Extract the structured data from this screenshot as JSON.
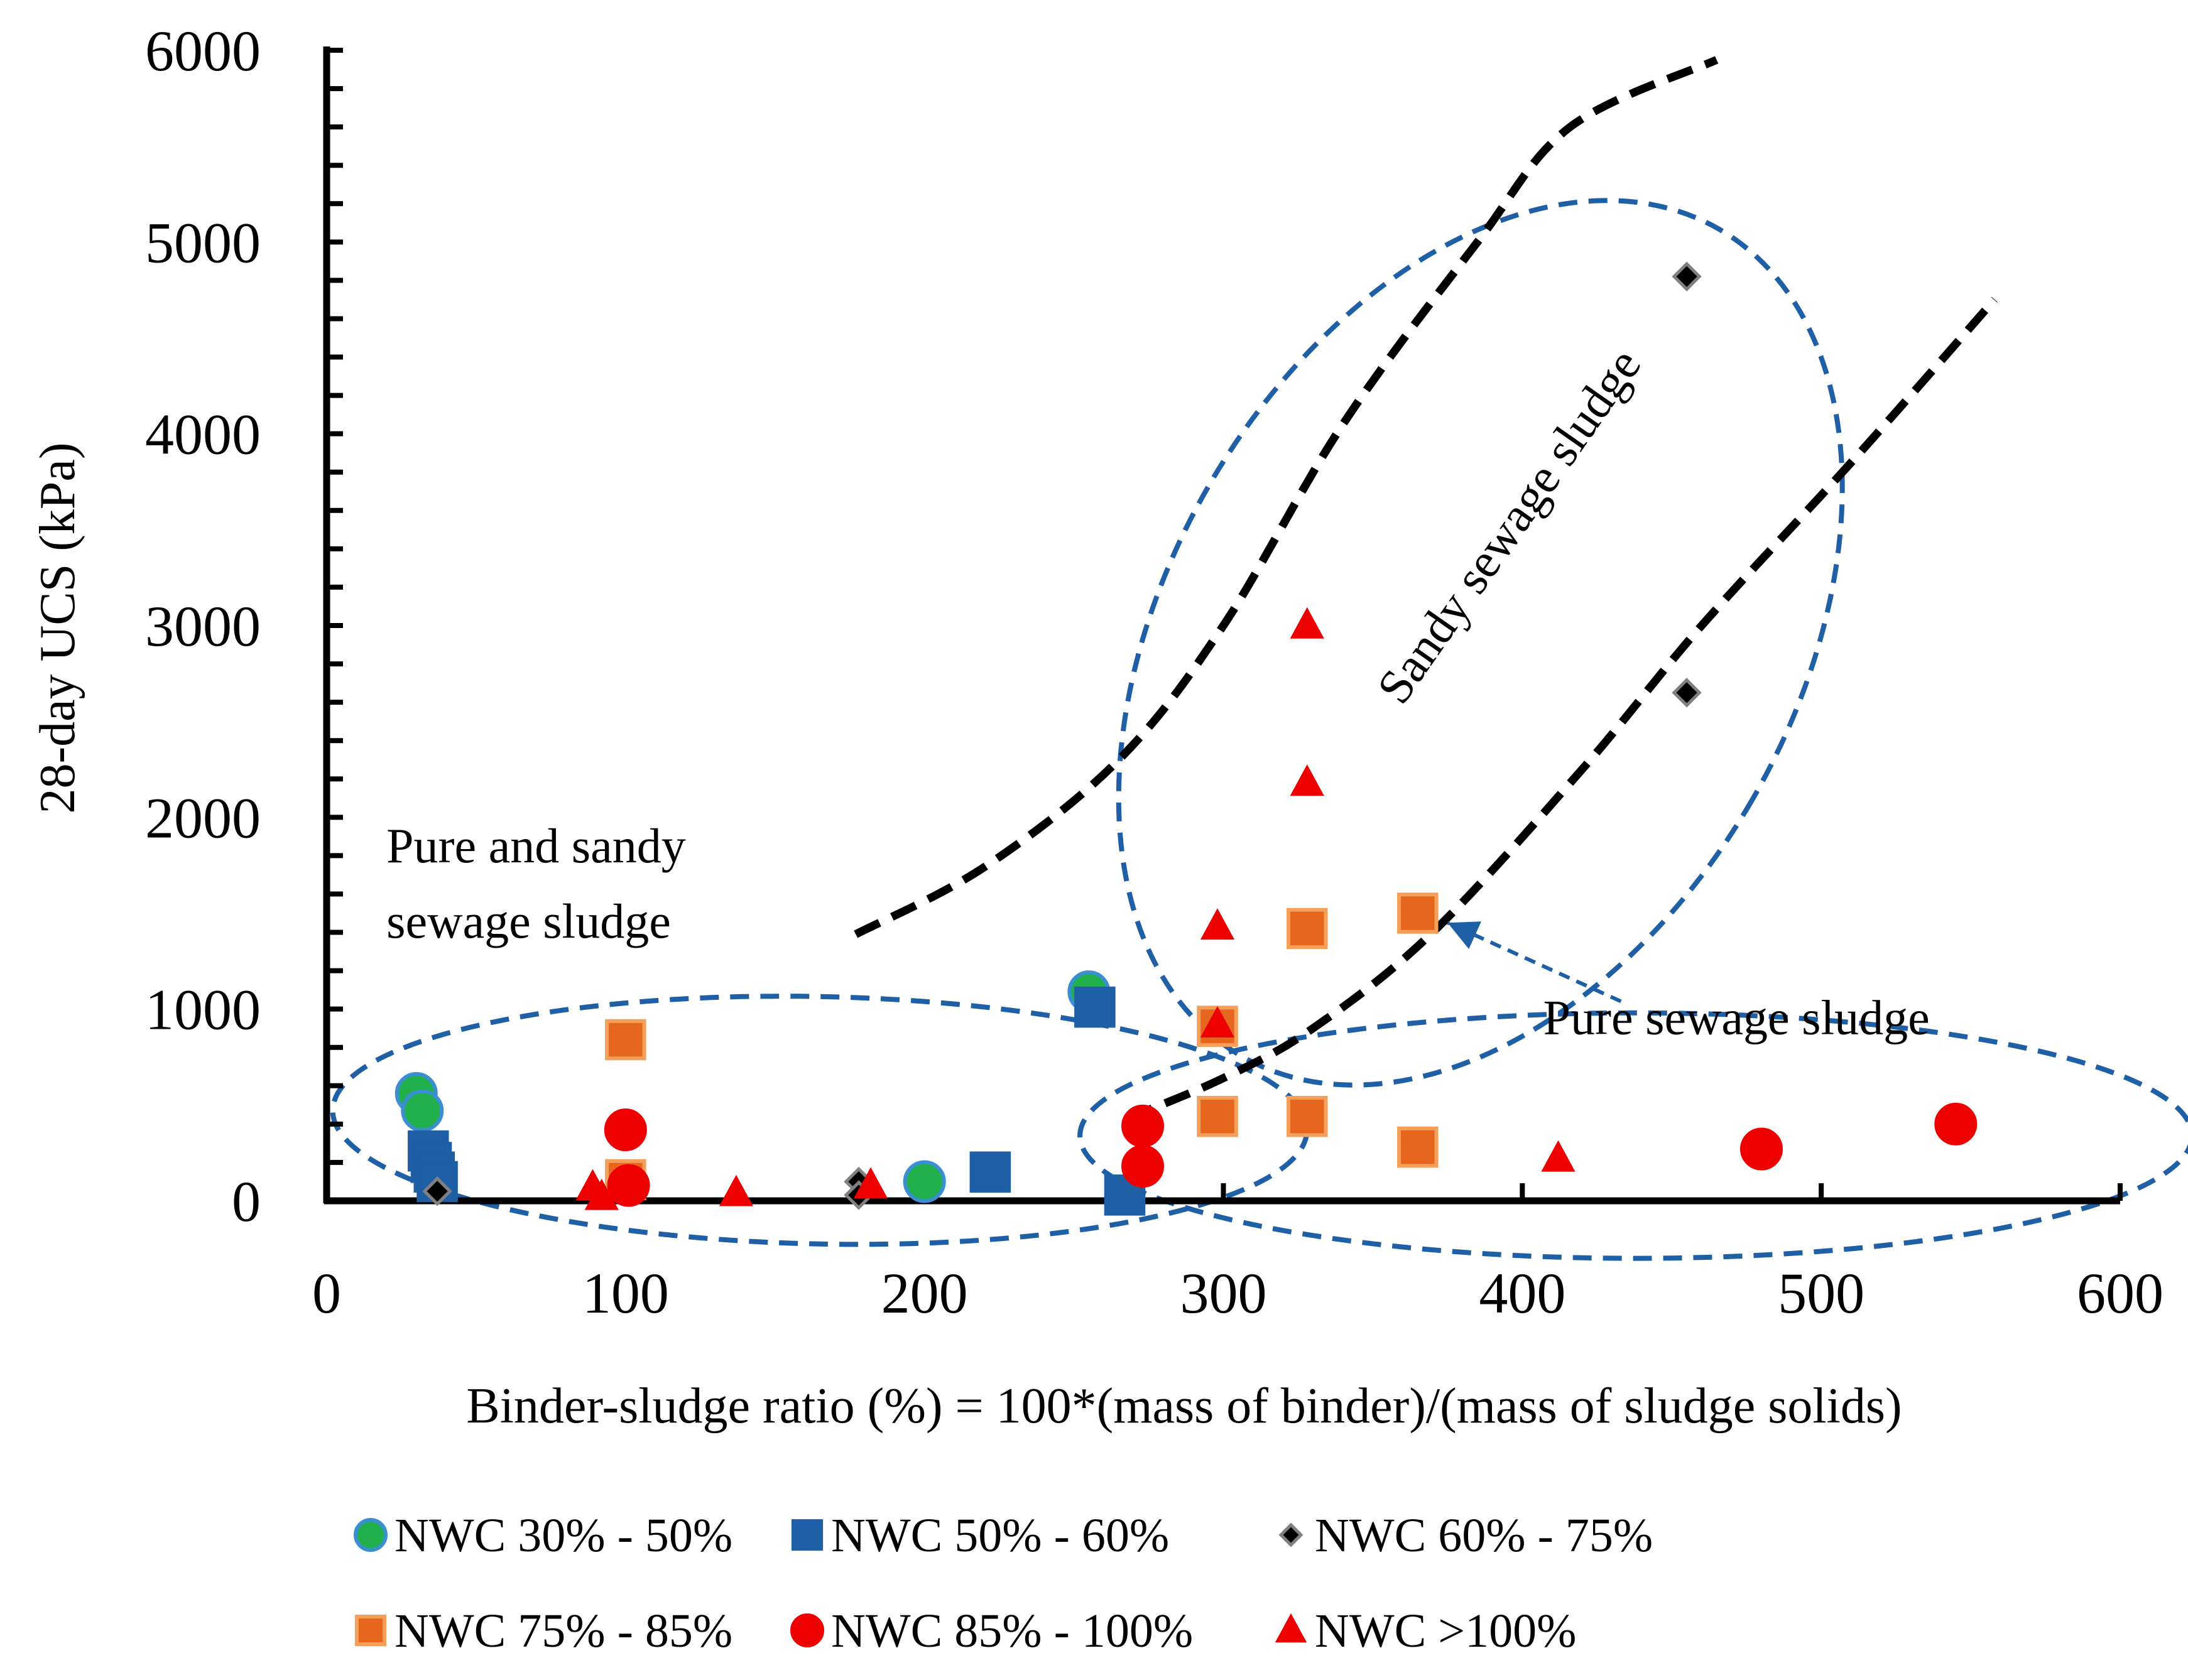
{
  "chart_data": {
    "type": "scatter",
    "title": "",
    "xlabel": "Binder-sludge ratio (%) = 100*(mass of binder)/(mass of sludge solids)",
    "ylabel": "28-day UCS (kPa)",
    "xlim": [
      0,
      600
    ],
    "ylim": [
      0,
      6000
    ],
    "xticks": [
      0,
      100,
      200,
      300,
      400,
      500,
      600
    ],
    "yticks": [
      0,
      1000,
      2000,
      3000,
      4000,
      5000,
      6000
    ],
    "grid": false,
    "legend_position": "bottom",
    "series": [
      {
        "name": "NWC 30% - 50%",
        "marker": "circle",
        "fill": "#22b04c",
        "stroke": "#3a8fd0",
        "points": [
          [
            30,
            560
          ],
          [
            32,
            470
          ],
          [
            200,
            100
          ],
          [
            255,
            1090
          ]
        ]
      },
      {
        "name": "NWC 50% - 60%",
        "marker": "square",
        "fill": "#1f5fa6",
        "stroke": "#1f5fa6",
        "points": [
          [
            34,
            260
          ],
          [
            35,
            200
          ],
          [
            36,
            150
          ],
          [
            37,
            100
          ],
          [
            222,
            150
          ],
          [
            257,
            1010
          ],
          [
            267,
            30
          ]
        ]
      },
      {
        "name": "NWC 60% - 75%",
        "marker": "diamond",
        "fill": "#000000",
        "stroke": "#808080",
        "points": [
          [
            37,
            50
          ],
          [
            178,
            100
          ],
          [
            178,
            30
          ],
          [
            455,
            4820
          ],
          [
            455,
            2650
          ]
        ]
      },
      {
        "name": "NWC 75% - 85%",
        "marker": "square",
        "fill": "#e6661e",
        "stroke": "#f5a05a",
        "points": [
          [
            100,
            840
          ],
          [
            100,
            110
          ],
          [
            298,
            910
          ],
          [
            298,
            440
          ],
          [
            328,
            1420
          ],
          [
            328,
            440
          ],
          [
            365,
            1500
          ],
          [
            365,
            280
          ]
        ]
      },
      {
        "name": "NWC 85% - 100%",
        "marker": "circle",
        "fill": "#ee0000",
        "stroke": "#ee0000",
        "points": [
          [
            100,
            370
          ],
          [
            101,
            80
          ],
          [
            273,
            390
          ],
          [
            273,
            180
          ],
          [
            480,
            270
          ],
          [
            545,
            400
          ]
        ]
      },
      {
        "name": "NWC >100%",
        "marker": "triangle",
        "fill": "#ee0000",
        "stroke": "#ee0000",
        "points": [
          [
            89,
            70
          ],
          [
            92,
            20
          ],
          [
            137,
            40
          ],
          [
            182,
            80
          ],
          [
            298,
            1430
          ],
          [
            298,
            920
          ],
          [
            328,
            3000
          ],
          [
            328,
            2180
          ],
          [
            412,
            220
          ]
        ]
      }
    ],
    "trendlines": [
      {
        "name": "upper-trend",
        "style": "dashed",
        "color": "#000000",
        "points": [
          [
            177,
            1390
          ],
          [
            220,
            1740
          ],
          [
            265,
            2300
          ],
          [
            300,
            3000
          ],
          [
            340,
            4050
          ],
          [
            385,
            5000
          ],
          [
            416,
            5600
          ],
          [
            465,
            5950
          ]
        ]
      },
      {
        "name": "lower-trend",
        "style": "dashed",
        "color": "#000000",
        "points": [
          [
            268,
            430
          ],
          [
            300,
            640
          ],
          [
            330,
            900
          ],
          [
            370,
            1400
          ],
          [
            420,
            2250
          ],
          [
            460,
            3000
          ],
          [
            510,
            3850
          ],
          [
            558,
            4700
          ]
        ]
      }
    ],
    "regions": [
      {
        "name": "region-pure-sandy",
        "color": "#1f5fa6",
        "cx": 165,
        "cy": 420,
        "rx": 163,
        "ry": 645,
        "rotate": 1.2
      },
      {
        "name": "region-sandy",
        "color": "#1f5fa6",
        "cx": 386,
        "cy": 2910,
        "rx": 105,
        "ry": 2490,
        "rotate": 30
      },
      {
        "name": "region-pure",
        "color": "#1f5fa6",
        "cx": 438,
        "cy": 340,
        "rx": 186,
        "ry": 640,
        "rotate": 0
      }
    ],
    "annotations": [
      {
        "name": "annotation-pure-sandy",
        "lines": [
          "Pure and sandy",
          "sewage sludge"
        ],
        "x": 20,
        "y": 1700
      },
      {
        "name": "annotation-sandy",
        "text": "Sandy sewage sludge",
        "x": 400,
        "y": 3470,
        "rotate": -55
      },
      {
        "name": "annotation-pure",
        "text": "Pure sewage sludge",
        "x": 407,
        "y": 870
      },
      {
        "name": "annotation-arrow",
        "from": [
          433,
          1040
        ],
        "to": [
          375,
          1450
        ]
      }
    ]
  }
}
